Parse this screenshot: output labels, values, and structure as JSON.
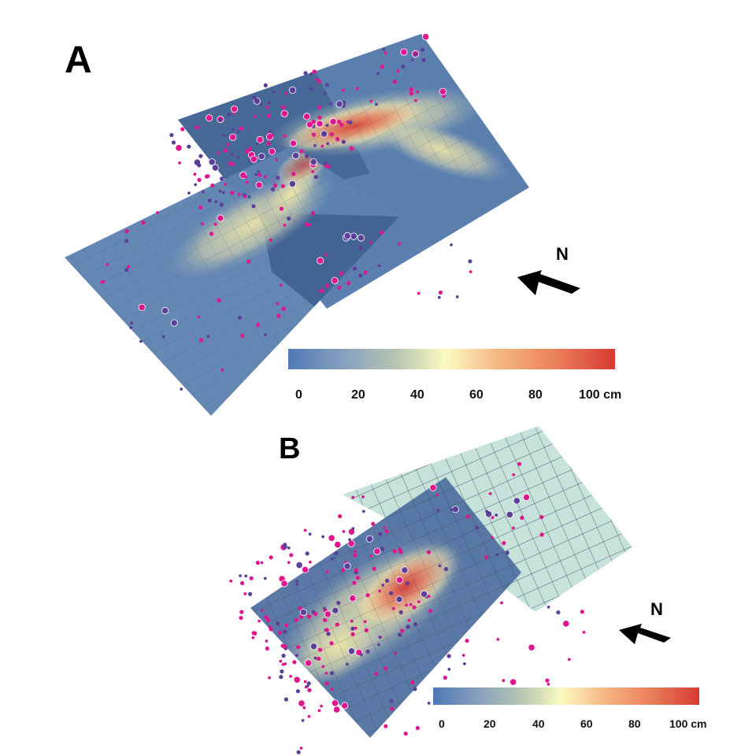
{
  "panels": [
    {
      "id": "A",
      "label": "A",
      "north_label": "N",
      "scale": {
        "ticks": [
          "0",
          "20",
          "40",
          "60",
          "80",
          "100 cm"
        ]
      }
    },
    {
      "id": "B",
      "label": "B",
      "north_label": "N",
      "scale": {
        "ticks": [
          "0",
          "20",
          "40",
          "60",
          "80",
          "100 cm"
        ]
      }
    }
  ],
  "colors": {
    "base_blue": "#5b80b0",
    "dark_blue": "#3d5e8f",
    "grid_line": "#4b5f74",
    "light_mesh": "#c7e2db",
    "quake_magenta": "#e0168f",
    "quake_purple": "#5b3f98",
    "scale_stops": [
      "#4f79b6",
      "#8aa2bd",
      "#b7c6b3",
      "#fbfac0",
      "#f6b885",
      "#ea7f5c",
      "#d63a2f"
    ]
  }
}
